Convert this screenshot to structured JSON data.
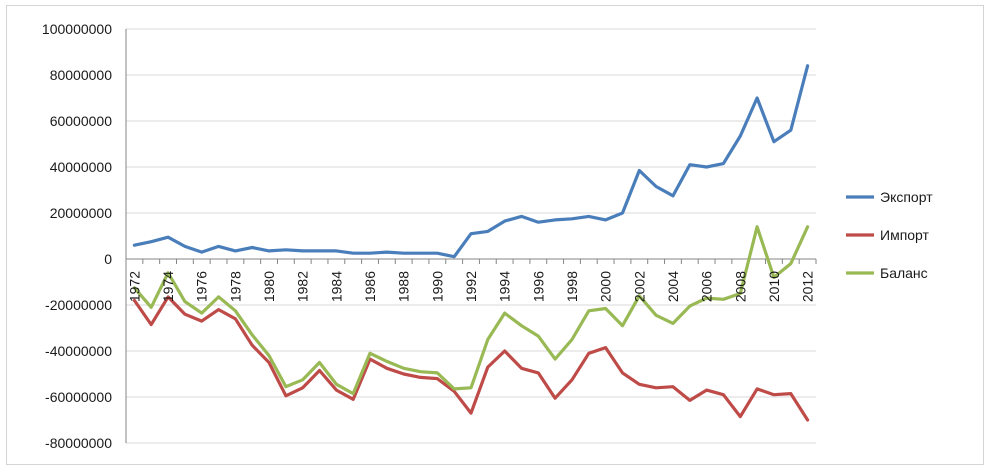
{
  "chart_data": {
    "type": "line",
    "title": "",
    "xlabel": "",
    "ylabel": "",
    "x": [
      1972,
      1973,
      1974,
      1975,
      1976,
      1977,
      1978,
      1979,
      1980,
      1981,
      1982,
      1983,
      1984,
      1985,
      1986,
      1987,
      1988,
      1989,
      1990,
      1991,
      1992,
      1993,
      1994,
      1995,
      1996,
      1997,
      1998,
      1999,
      2000,
      2001,
      2002,
      2003,
      2004,
      2005,
      2006,
      2007,
      2008,
      2009,
      2010,
      2011,
      2012
    ],
    "x_tick_labels": [
      "1972",
      "1974",
      "1976",
      "1978",
      "1980",
      "1982",
      "1984",
      "1986",
      "1988",
      "1990",
      "1992",
      "1994",
      "1996",
      "1998",
      "2000",
      "2002",
      "2004",
      "2006",
      "2008",
      "2010",
      "2012"
    ],
    "y_tick_labels": [
      "100000000",
      "80000000",
      "60000000",
      "40000000",
      "20000000",
      "0",
      "-20000000",
      "-40000000",
      "-60000000",
      "-80000000"
    ],
    "ylim": [
      -80000000,
      100000000
    ],
    "grid": true,
    "legend_position": "right",
    "series": [
      {
        "name": "Экспорт",
        "color": "#4a7ebb",
        "values": [
          6000000,
          7500000,
          9500000,
          5500000,
          3000000,
          5500000,
          3500000,
          5000000,
          3500000,
          4000000,
          3500000,
          3500000,
          3500000,
          2500000,
          2500000,
          3000000,
          2500000,
          2500000,
          2500000,
          1000000,
          11000000,
          12000000,
          16500000,
          18500000,
          16000000,
          17000000,
          17500000,
          18500000,
          17000000,
          20000000,
          38500000,
          31500000,
          27500000,
          41000000,
          40000000,
          41500000,
          53500000,
          70000000,
          51000000,
          56000000,
          84000000
        ]
      },
      {
        "name": "Импорт",
        "color": "#be4b48",
        "values": [
          -18000000,
          -28500000,
          -16500000,
          -24000000,
          -27000000,
          -22000000,
          -26000000,
          -37500000,
          -45000000,
          -59500000,
          -56000000,
          -48500000,
          -57000000,
          -61000000,
          -43500000,
          -47500000,
          -50000000,
          -51500000,
          -52000000,
          -57500000,
          -67000000,
          -47000000,
          -40000000,
          -47500000,
          -49500000,
          -60500000,
          -52500000,
          -41000000,
          -38500000,
          -49500000,
          -54500000,
          -56000000,
          -55500000,
          -61500000,
          -57000000,
          -59000000,
          -68500000,
          -56500000,
          -59000000,
          -58500000,
          -70000000
        ]
      },
      {
        "name": "Баланс",
        "color": "#98b954",
        "values": [
          -12500000,
          -21000000,
          -6000000,
          -18500000,
          -23500000,
          -16500000,
          -22500000,
          -33000000,
          -42000000,
          -55500000,
          -52500000,
          -45000000,
          -54500000,
          -58500000,
          -41000000,
          -44500000,
          -47500000,
          -49000000,
          -49500000,
          -56500000,
          -56000000,
          -35000000,
          -23500000,
          -29000000,
          -33500000,
          -43500000,
          -35000000,
          -22500000,
          -21500000,
          -29000000,
          -16000000,
          -24500000,
          -28000000,
          -20500000,
          -17000000,
          -17500000,
          -15000000,
          14000000,
          -8000000,
          -2000000,
          14000000
        ]
      }
    ]
  }
}
